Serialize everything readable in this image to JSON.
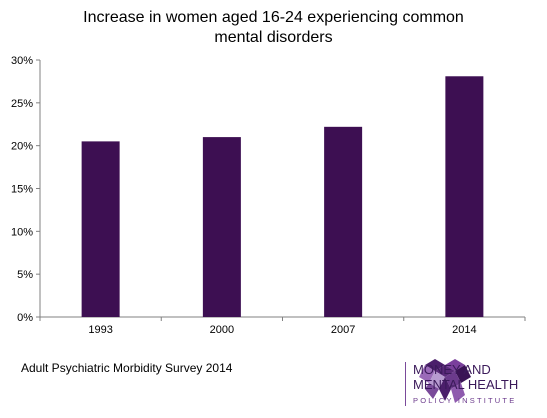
{
  "chart_data": {
    "type": "bar",
    "title_lines": [
      "Increase in women aged 16-24 experiencing common",
      "mental disorders"
    ],
    "categories": [
      "1993",
      "2000",
      "2007",
      "2014"
    ],
    "values": [
      20.5,
      21.0,
      22.2,
      28.1
    ],
    "ylim": [
      0,
      30
    ],
    "yticks": [
      "0%",
      "5%",
      "10%",
      "15%",
      "20%",
      "25%",
      "30%"
    ],
    "grid": false,
    "bar_color": "#3d0f52"
  },
  "source": "Adult Psychiatric Morbidity Survey 2014",
  "logo": {
    "line1": "MONEY AND",
    "line2": "MENTAL HEALTH",
    "line3": "POLICY INSTITUTE",
    "color": "#5a2a7a"
  }
}
